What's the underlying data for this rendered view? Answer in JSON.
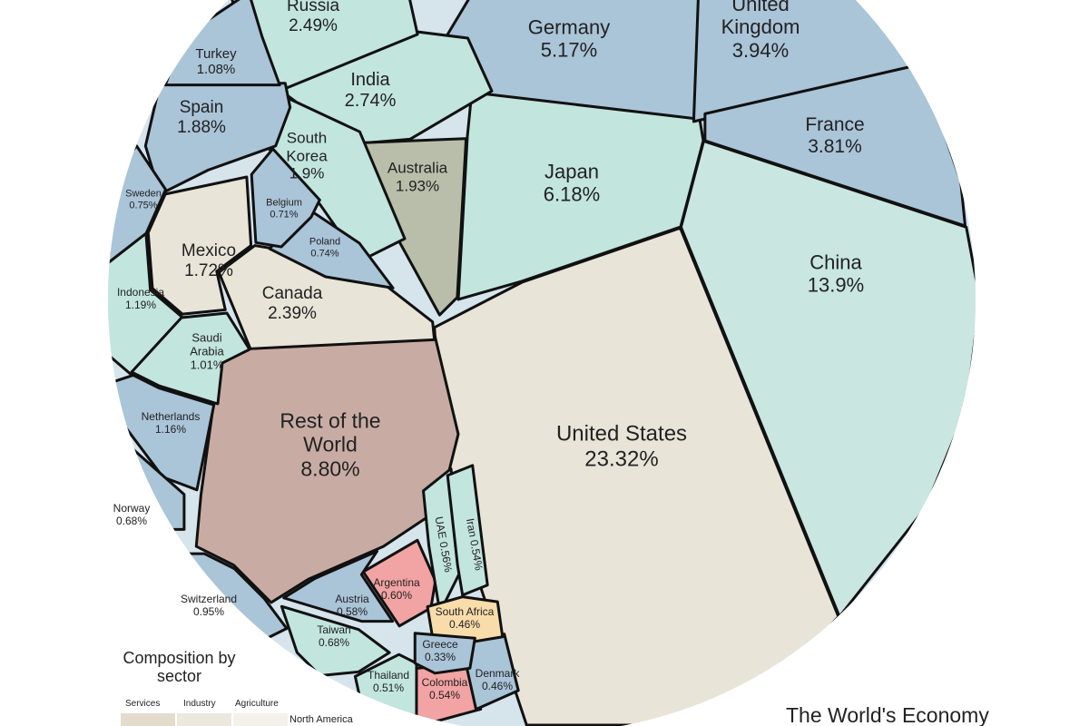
{
  "chart_data": {
    "type": "voronoi",
    "title": "The World's Economy",
    "categories": [
      "United States",
      "China",
      "Rest of the World",
      "Japan",
      "Germany",
      "United Kingdom",
      "France",
      "India",
      "Russia",
      "Canada",
      "Australia",
      "South Korea",
      "Spain",
      "Mexico",
      "Indonesia",
      "Netherlands",
      "Turkey",
      "Saudi Arabia",
      "Switzerland",
      "Sweden",
      "Poland",
      "Belgium",
      "Norway",
      "Taiwan",
      "Argentina",
      "Austria",
      "UAE",
      "Iran",
      "Colombia",
      "Thailand",
      "Denmark",
      "South Africa",
      "Greece"
    ],
    "values": [
      23.32,
      13.9,
      8.8,
      6.18,
      5.17,
      3.94,
      3.81,
      2.74,
      2.49,
      2.39,
      1.93,
      1.9,
      1.88,
      1.72,
      1.19,
      1.16,
      1.08,
      1.01,
      0.95,
      0.75,
      0.74,
      0.71,
      0.68,
      0.68,
      0.6,
      0.58,
      0.56,
      0.54,
      0.54,
      0.51,
      0.46,
      0.46,
      0.33
    ],
    "value_labels": [
      "23.32%",
      "13.9%",
      "8.80%",
      "6.18%",
      "5.17%",
      "3.94%",
      "3.81%",
      "2.74%",
      "2.49%",
      "2.39%",
      "1.93%",
      "1.9%",
      "1.88%",
      "1.72%",
      "1.19%",
      "1.16%",
      "1.08%",
      "1.01%",
      "0.95%",
      "0.75%",
      "0.74%",
      "0.71%",
      "0.68%",
      "0.68%",
      "0.60%",
      "0.58%",
      "0.56%",
      "0.54%",
      "0.54%",
      "0.51%",
      "0.46%",
      "0.46%",
      "0.33%"
    ],
    "colors": [
      "#e8e4d8",
      "#c9e6e0",
      "#c8aca4",
      "#c2e5de",
      "#aac4d8",
      "#aac4d8",
      "#aac4d8",
      "#c2e5de",
      "#c2e5de",
      "#e8e4d8",
      "#b8bea9",
      "#c2e5de",
      "#aac4d8",
      "#e8e4d8",
      "#c2e5de",
      "#aac4d8",
      "#aac4d8",
      "#c2e5de",
      "#aac4d8",
      "#aac4d8",
      "#aac4d8",
      "#aac4d8",
      "#aac4d8",
      "#c2e5de",
      "#f2a3a3",
      "#aac4d8",
      "#c2e5de",
      "#c2e5de",
      "#f2a3a3",
      "#c2e5de",
      "#aac4d8",
      "#f8dcaa",
      "#aac4d8"
    ],
    "legend": {
      "title": "Composition by sector",
      "columns": [
        "Services",
        "Industry",
        "Agriculture"
      ],
      "rows": [
        "North America"
      ]
    }
  }
}
